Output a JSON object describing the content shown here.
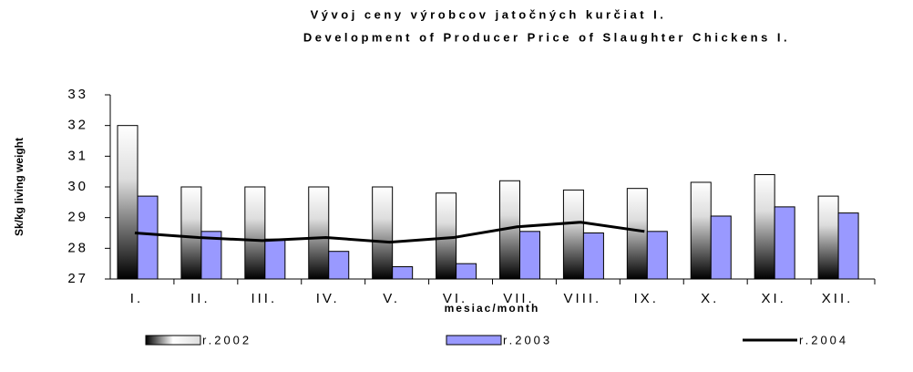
{
  "chart_data": {
    "type": "bar",
    "title": "Vývoj ceny výrobcov jatočných kurčiat I.",
    "subtitle": "Development of Producer Price of Slaughter Chickens I.",
    "x_label": "mesiac/month",
    "y_label": "Sk/kg living weight",
    "categories": [
      "I.",
      "II.",
      "III.",
      "IV.",
      "V.",
      "VI.",
      "VII.",
      "VIII.",
      "IX.",
      "X.",
      "XI.",
      "XII."
    ],
    "series": [
      {
        "name": "r.2002",
        "type": "bar",
        "color": "gradient",
        "values": [
          32.0,
          30.0,
          30.0,
          30.0,
          30.0,
          29.8,
          30.2,
          29.9,
          29.95,
          30.15,
          30.4,
          29.7
        ]
      },
      {
        "name": "r.2003",
        "type": "bar",
        "color": "#9999ff",
        "values": [
          29.7,
          28.55,
          28.3,
          27.9,
          27.4,
          27.5,
          28.55,
          28.5,
          28.55,
          29.05,
          29.35,
          29.15
        ]
      },
      {
        "name": "r.2004",
        "type": "line",
        "color": "#000000",
        "values": [
          28.5,
          28.35,
          28.25,
          28.35,
          28.2,
          28.35,
          28.7,
          28.85,
          28.55,
          null,
          null,
          null
        ]
      }
    ],
    "ylim": [
      27,
      33
    ],
    "yticks": [
      27,
      28,
      29,
      30,
      31,
      32,
      33
    ],
    "grid": false,
    "legend": "bottom"
  }
}
